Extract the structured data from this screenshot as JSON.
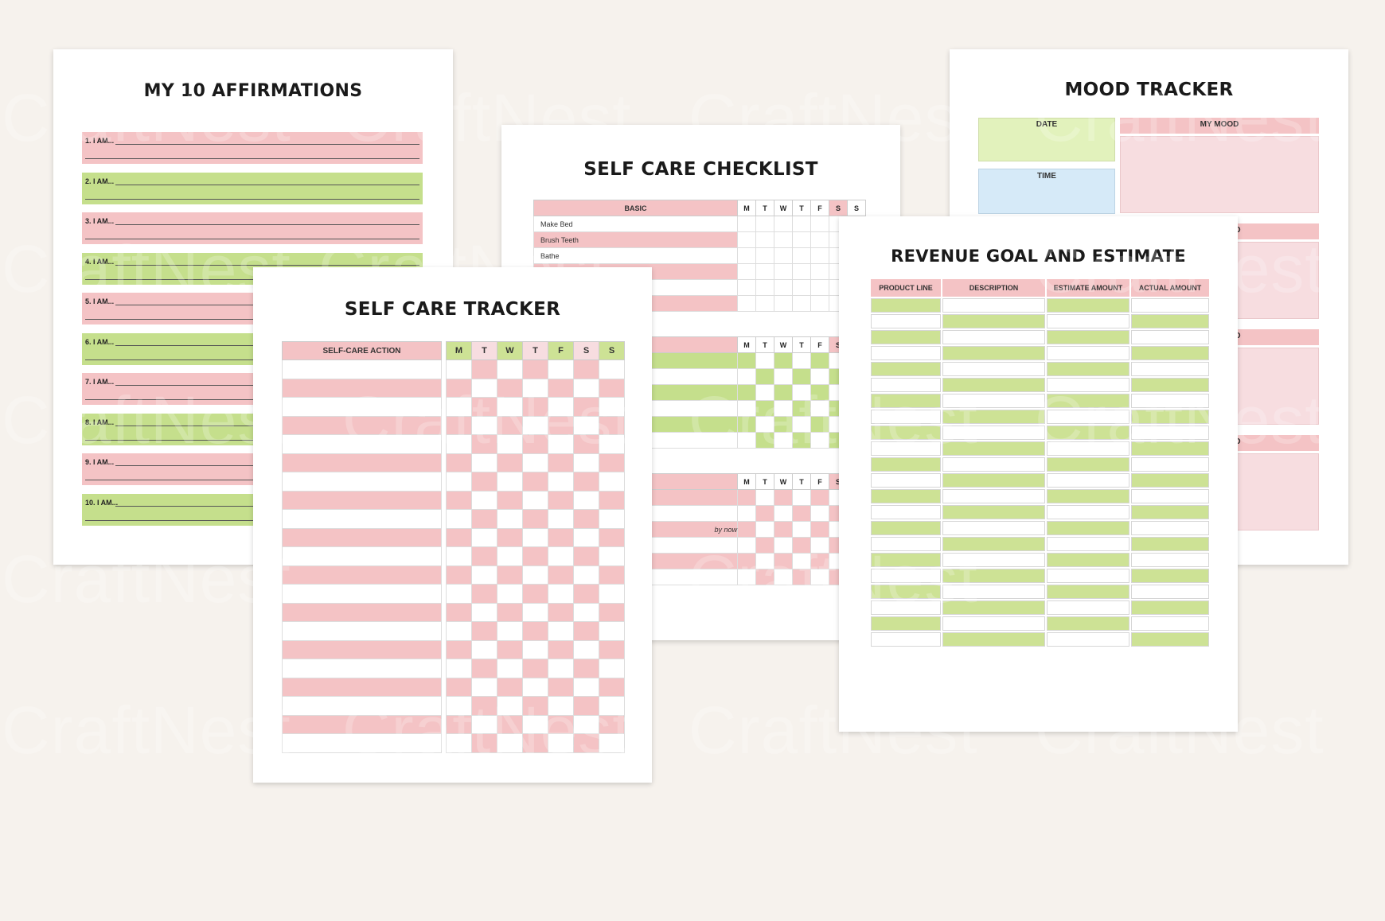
{
  "watermark": "CraftNest",
  "colors": {
    "pink": "#f4c3c5",
    "pink_light": "#f7dde0",
    "green": "#cde295",
    "green_strong": "#c5df8c",
    "blue": "#d6eaf8",
    "background": "#f6f2ed"
  },
  "affirmations": {
    "title": "MY 10 AFFIRMATIONS",
    "items": [
      "1. I AM...",
      "2. I AM...",
      "3. I AM...",
      "4. I AM...",
      "5. I AM...",
      "6. I AM...",
      "7. I AM...",
      "8. I AM...",
      "9. I AM...",
      "10. I AM..."
    ]
  },
  "checklist": {
    "title": "SELF CARE CHECKLIST",
    "section_header": "BASIC",
    "days": [
      "M",
      "T",
      "W",
      "T",
      "F",
      "S",
      "S"
    ],
    "items": [
      "Make Bed",
      "Brush Teeth",
      "Bathe",
      "",
      "",
      ""
    ],
    "partial_item": "by now"
  },
  "mood": {
    "title": "MOOD TRACKER",
    "date_label": "DATE",
    "time_label": "TIME",
    "mood_label": "MY MOOD",
    "partial_label": "D"
  },
  "tracker": {
    "title": "SELF CARE TRACKER",
    "action_header": "SELF-CARE ACTION",
    "days": [
      "M",
      "T",
      "W",
      "T",
      "F",
      "S",
      "S"
    ]
  },
  "revenue": {
    "title": "REVENUE GOAL AND ESTIMATE",
    "headers": [
      "PRODUCT LINE",
      "DESCRIPTION",
      "ESTIMATE AMOUNT",
      "ACTUAL AMOUNT"
    ]
  }
}
